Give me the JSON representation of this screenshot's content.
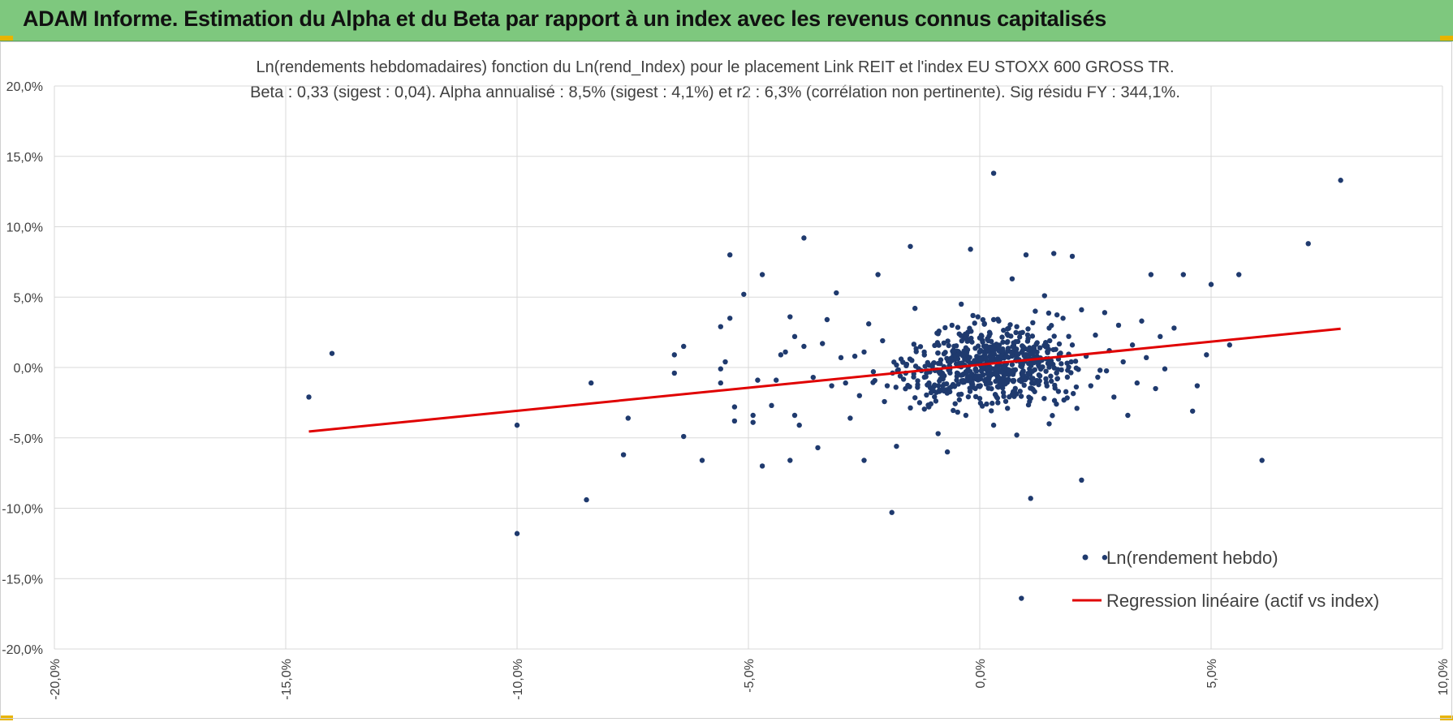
{
  "header": {
    "title": "ADAM Informe. Estimation du Alpha et du Beta par rapport à un index avec les revenus connus capitalisés"
  },
  "colors": {
    "title_bar": "#7ec87e",
    "points": "#1f3a6e",
    "regression": "#e00000",
    "grid": "#d9d9d9",
    "corner": "#e8b400"
  },
  "chart_data": {
    "type": "scatter",
    "title": "Ln(rendements hebdomadaires) fonction du Ln(rend_Index) pour le placement Link REIT et l'index EU STOXX 600 GROSS TR.",
    "subtitle": "Beta : 0,33 (sigest : 0,04).  Alpha annualisé : 8,5% (sigest : 4,1%) et r2 : 6,3% (corrélation non pertinente). Sig résidu FY : 344,1%.",
    "xlabel": "",
    "ylabel": "",
    "xlim": [
      -0.2,
      0.1
    ],
    "ylim": [
      -0.2,
      0.2
    ],
    "x_ticks": [
      -0.2,
      -0.15,
      -0.1,
      -0.05,
      0.0,
      0.05,
      0.1
    ],
    "x_tick_labels": [
      "-20,0%",
      "-15,0%",
      "-10,0%",
      "-5,0%",
      "0,0%",
      "5,0%",
      "10,0%"
    ],
    "y_ticks": [
      0.2,
      0.15,
      0.1,
      0.05,
      0.0,
      -0.05,
      -0.1,
      -0.15,
      -0.2
    ],
    "y_tick_labels": [
      "20,0%",
      "15,0%",
      "10,0%",
      "5,0%",
      "0,0%",
      "-5,0%",
      "-10,0%",
      "-15,0%",
      "-20,0%"
    ],
    "grid": true,
    "legend_position": "bottom-right",
    "series": [
      {
        "name": "Ln(rendement hebdo)",
        "kind": "points",
        "points": [
          [
            -0.145,
            -0.021
          ],
          [
            -0.14,
            0.01
          ],
          [
            -0.1,
            -0.118
          ],
          [
            -0.1,
            -0.041
          ],
          [
            -0.085,
            -0.094
          ],
          [
            -0.084,
            -0.011
          ],
          [
            -0.077,
            -0.062
          ],
          [
            -0.076,
            -0.036
          ],
          [
            -0.066,
            0.009
          ],
          [
            -0.066,
            -0.004
          ],
          [
            -0.064,
            0.015
          ],
          [
            -0.064,
            -0.049
          ],
          [
            -0.06,
            -0.066
          ],
          [
            -0.056,
            0.029
          ],
          [
            -0.056,
            -0.001
          ],
          [
            -0.056,
            -0.011
          ],
          [
            -0.055,
            0.004
          ],
          [
            -0.054,
            0.08
          ],
          [
            -0.054,
            0.035
          ],
          [
            -0.053,
            -0.038
          ],
          [
            -0.053,
            -0.028
          ],
          [
            -0.051,
            0.052
          ],
          [
            -0.049,
            -0.039
          ],
          [
            -0.049,
            -0.034
          ],
          [
            -0.048,
            -0.009
          ],
          [
            -0.047,
            0.066
          ],
          [
            -0.047,
            -0.07
          ],
          [
            -0.045,
            -0.027
          ],
          [
            -0.044,
            -0.009
          ],
          [
            -0.043,
            0.009
          ],
          [
            -0.042,
            0.011
          ],
          [
            -0.041,
            0.036
          ],
          [
            -0.041,
            -0.066
          ],
          [
            -0.04,
            0.022
          ],
          [
            -0.04,
            -0.034
          ],
          [
            -0.039,
            -0.041
          ],
          [
            -0.038,
            0.092
          ],
          [
            -0.038,
            0.015
          ],
          [
            -0.036,
            -0.007
          ],
          [
            -0.035,
            -0.057
          ],
          [
            -0.034,
            0.017
          ],
          [
            -0.033,
            0.034
          ],
          [
            -0.032,
            -0.013
          ],
          [
            -0.031,
            0.053
          ],
          [
            -0.03,
            0.007
          ],
          [
            -0.029,
            -0.011
          ],
          [
            -0.028,
            -0.036
          ],
          [
            -0.027,
            0.008
          ],
          [
            -0.026,
            -0.02
          ],
          [
            -0.025,
            0.011
          ],
          [
            -0.025,
            -0.066
          ],
          [
            -0.024,
            0.031
          ],
          [
            -0.023,
            -0.003
          ],
          [
            -0.022,
            0.066
          ],
          [
            -0.021,
            0.019
          ],
          [
            -0.02,
            -0.013
          ],
          [
            -0.019,
            -0.103
          ],
          [
            -0.018,
            -0.056
          ],
          [
            -0.017,
            0.006
          ],
          [
            -0.016,
            -0.004
          ],
          [
            -0.015,
            0.086
          ],
          [
            -0.014,
            0.042
          ],
          [
            -0.013,
            -0.025
          ],
          [
            -0.012,
            0.011
          ],
          [
            -0.011,
            -0.028
          ],
          [
            -0.01,
            0.003
          ],
          [
            -0.009,
            -0.047
          ],
          [
            -0.009,
            0.024
          ],
          [
            -0.008,
            -0.016
          ],
          [
            -0.007,
            -0.06
          ],
          [
            -0.006,
            0.03
          ],
          [
            -0.006,
            0.005
          ],
          [
            -0.005,
            -0.009
          ],
          [
            -0.004,
            0.045
          ],
          [
            -0.004,
            -0.019
          ],
          [
            -0.003,
            0.014
          ],
          [
            -0.003,
            -0.034
          ],
          [
            -0.002,
            0.084
          ],
          [
            -0.002,
            0.003
          ],
          [
            -0.001,
            -0.006
          ],
          [
            0.0,
            0.021
          ],
          [
            0.0,
            -0.022
          ],
          [
            0.001,
            0.011
          ],
          [
            0.002,
            -0.003
          ],
          [
            0.003,
            0.138
          ],
          [
            0.003,
            0.034
          ],
          [
            0.003,
            -0.041
          ],
          [
            0.004,
            0.006
          ],
          [
            0.004,
            -0.014
          ],
          [
            0.005,
            0.018
          ],
          [
            0.006,
            -0.029
          ],
          [
            0.007,
            0.063
          ],
          [
            0.007,
            0.002
          ],
          [
            0.008,
            -0.048
          ],
          [
            0.008,
            0.029
          ],
          [
            0.009,
            -0.01
          ],
          [
            0.009,
            -0.164
          ],
          [
            0.01,
            0.08
          ],
          [
            0.01,
            0.009
          ],
          [
            0.011,
            -0.093
          ],
          [
            0.011,
            -0.022
          ],
          [
            0.012,
            0.04
          ],
          [
            0.013,
            0.014
          ],
          [
            0.013,
            -0.006
          ],
          [
            0.014,
            0.051
          ],
          [
            0.015,
            0.028
          ],
          [
            0.015,
            -0.04
          ],
          [
            0.016,
            0.081
          ],
          [
            0.017,
            0.006
          ],
          [
            0.017,
            -0.017
          ],
          [
            0.018,
            0.035
          ],
          [
            0.019,
            -0.002
          ],
          [
            0.02,
            0.079
          ],
          [
            0.02,
            0.016
          ],
          [
            0.021,
            -0.029
          ],
          [
            0.022,
            0.041
          ],
          [
            0.022,
            -0.08
          ],
          [
            0.023,
            0.008
          ],
          [
            0.024,
            -0.013
          ],
          [
            0.025,
            0.023
          ],
          [
            0.026,
            -0.002
          ],
          [
            0.027,
            0.039
          ],
          [
            0.027,
            -0.135
          ],
          [
            0.028,
            0.012
          ],
          [
            0.029,
            -0.021
          ],
          [
            0.03,
            0.03
          ],
          [
            0.031,
            0.004
          ],
          [
            0.032,
            -0.034
          ],
          [
            0.033,
            0.016
          ],
          [
            0.034,
            -0.011
          ],
          [
            0.035,
            0.033
          ],
          [
            0.036,
            0.007
          ],
          [
            0.037,
            0.066
          ],
          [
            0.038,
            -0.015
          ],
          [
            0.039,
            0.022
          ],
          [
            0.04,
            -0.001
          ],
          [
            0.042,
            0.028
          ],
          [
            0.044,
            0.066
          ],
          [
            0.046,
            -0.031
          ],
          [
            0.047,
            -0.013
          ],
          [
            0.049,
            0.009
          ],
          [
            0.05,
            0.059
          ],
          [
            0.054,
            0.016
          ],
          [
            0.056,
            0.066
          ],
          [
            0.061,
            -0.066
          ],
          [
            0.071,
            0.088
          ],
          [
            0.078,
            0.133
          ]
        ]
      },
      {
        "name": "Regression linéaire (actif vs index)",
        "kind": "line",
        "points": [
          [
            -0.145,
            -0.0455
          ],
          [
            0.078,
            0.0275
          ]
        ]
      }
    ]
  }
}
